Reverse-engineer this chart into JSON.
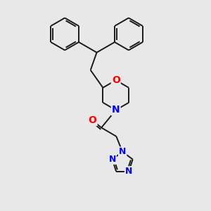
{
  "bg_color": "#e8e8e8",
  "bond_color": "#1a1a1a",
  "N_color": "#0000ff",
  "O_color": "#ff0000",
  "font_size_atoms": 10,
  "line_width": 1.4,
  "fig_size": [
    3.0,
    3.0
  ],
  "dpi": 100,
  "xlim": [
    0,
    10
  ],
  "ylim": [
    0,
    10
  ]
}
